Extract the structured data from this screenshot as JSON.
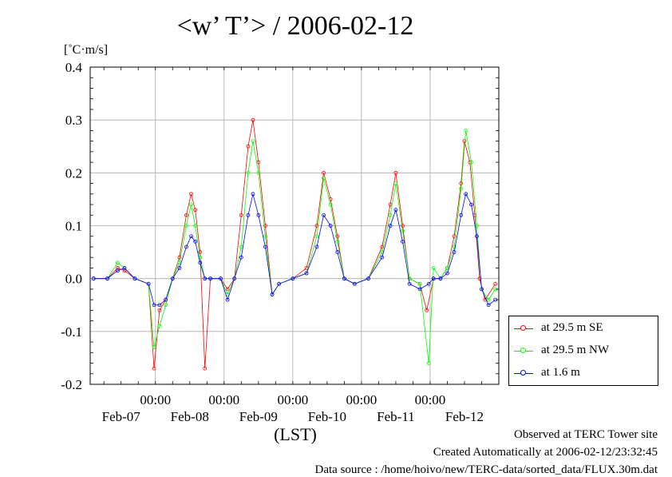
{
  "title": "<w’ T’> / 2006-02-12",
  "unit": "[˚C·m/s]",
  "xlabel": "(LST)",
  "footer": {
    "line1": "Observed at TERC Tower site",
    "line2": "Created Automatically at 2006-02-12/23:32:45",
    "line3": "Data source : /home/hoivo/new/TERC-data/sorted_data/FLUX.30m.dat"
  },
  "chart_data": {
    "type": "line",
    "ylim": [
      -0.2,
      0.4
    ],
    "yticks": [
      "-0.2",
      "-0.1",
      "0.0",
      "0.1",
      "0.2",
      "0.3",
      "0.4"
    ],
    "xlim": [
      -0.95,
      5.0
    ],
    "xticks_time": [
      "00:00",
      "00:00",
      "00:00",
      "00:00",
      "00:00"
    ],
    "xticks_date": [
      "Feb-07",
      "Feb-08",
      "Feb-09",
      "Feb-10",
      "Feb-11",
      "Feb-12"
    ],
    "grid": true,
    "legend_position": "right",
    "series": [
      {
        "name": "at 29.5 m SE",
        "color": "#ff0000",
        "values": [
          [
            -0.9,
            0.0
          ],
          [
            -0.7,
            0.0
          ],
          [
            -0.55,
            0.02
          ],
          [
            -0.45,
            0.015
          ],
          [
            -0.3,
            0.0
          ],
          [
            -0.1,
            -0.01
          ],
          [
            -0.02,
            -0.17
          ],
          [
            0.06,
            -0.06
          ],
          [
            0.15,
            -0.04
          ],
          [
            0.25,
            0.0
          ],
          [
            0.35,
            0.04
          ],
          [
            0.45,
            0.12
          ],
          [
            0.52,
            0.16
          ],
          [
            0.58,
            0.13
          ],
          [
            0.65,
            0.05
          ],
          [
            0.72,
            -0.17
          ],
          [
            0.8,
            0.0
          ],
          [
            0.95,
            0.0
          ],
          [
            1.05,
            -0.02
          ],
          [
            1.15,
            0.0
          ],
          [
            1.25,
            0.12
          ],
          [
            1.35,
            0.25
          ],
          [
            1.42,
            0.3
          ],
          [
            1.5,
            0.22
          ],
          [
            1.6,
            0.1
          ],
          [
            1.7,
            -0.03
          ],
          [
            1.8,
            -0.01
          ],
          [
            2.0,
            0.0
          ],
          [
            2.2,
            0.02
          ],
          [
            2.35,
            0.1
          ],
          [
            2.45,
            0.2
          ],
          [
            2.55,
            0.15
          ],
          [
            2.65,
            0.08
          ],
          [
            2.75,
            0.0
          ],
          [
            2.9,
            -0.01
          ],
          [
            3.1,
            0.0
          ],
          [
            3.3,
            0.06
          ],
          [
            3.42,
            0.14
          ],
          [
            3.5,
            0.2
          ],
          [
            3.6,
            0.1
          ],
          [
            3.7,
            0.0
          ],
          [
            3.85,
            -0.01
          ],
          [
            3.95,
            -0.06
          ],
          [
            4.05,
            0.0
          ],
          [
            4.15,
            0.0
          ],
          [
            4.25,
            0.02
          ],
          [
            4.35,
            0.08
          ],
          [
            4.45,
            0.18
          ],
          [
            4.5,
            0.26
          ],
          [
            4.58,
            0.22
          ],
          [
            4.65,
            0.12
          ],
          [
            4.72,
            0.0
          ],
          [
            4.8,
            -0.04
          ],
          [
            4.95,
            -0.01
          ]
        ]
      },
      {
        "name": "at 29.5 m NW",
        "color": "#00ff00",
        "values": [
          [
            -0.9,
            0.0
          ],
          [
            -0.7,
            0.0
          ],
          [
            -0.55,
            0.03
          ],
          [
            -0.45,
            0.02
          ],
          [
            -0.3,
            0.0
          ],
          [
            -0.1,
            -0.01
          ],
          [
            -0.02,
            -0.13
          ],
          [
            0.06,
            -0.09
          ],
          [
            0.15,
            -0.05
          ],
          [
            0.25,
            0.0
          ],
          [
            0.35,
            0.03
          ],
          [
            0.45,
            0.1
          ],
          [
            0.52,
            0.14
          ],
          [
            0.58,
            0.1
          ],
          [
            0.65,
            0.04
          ],
          [
            0.72,
            0.0
          ],
          [
            0.8,
            0.0
          ],
          [
            0.95,
            0.0
          ],
          [
            1.05,
            -0.03
          ],
          [
            1.15,
            0.0
          ],
          [
            1.25,
            0.06
          ],
          [
            1.35,
            0.2
          ],
          [
            1.42,
            0.26
          ],
          [
            1.5,
            0.2
          ],
          [
            1.6,
            0.08
          ],
          [
            1.7,
            -0.03
          ],
          [
            1.8,
            -0.01
          ],
          [
            2.0,
            0.0
          ],
          [
            2.2,
            0.01
          ],
          [
            2.35,
            0.08
          ],
          [
            2.45,
            0.19
          ],
          [
            2.55,
            0.14
          ],
          [
            2.65,
            0.07
          ],
          [
            2.75,
            0.0
          ],
          [
            2.9,
            -0.01
          ],
          [
            3.1,
            0.0
          ],
          [
            3.3,
            0.05
          ],
          [
            3.42,
            0.12
          ],
          [
            3.5,
            0.18
          ],
          [
            3.6,
            0.09
          ],
          [
            3.7,
            0.0
          ],
          [
            3.85,
            -0.01
          ],
          [
            3.98,
            -0.16
          ],
          [
            4.05,
            0.02
          ],
          [
            4.15,
            0.0
          ],
          [
            4.25,
            0.02
          ],
          [
            4.35,
            0.06
          ],
          [
            4.45,
            0.17
          ],
          [
            4.52,
            0.28
          ],
          [
            4.6,
            0.22
          ],
          [
            4.68,
            0.1
          ],
          [
            4.75,
            -0.02
          ],
          [
            4.85,
            -0.04
          ],
          [
            4.95,
            -0.02
          ]
        ]
      },
      {
        "name": "at 1.6 m",
        "color": "#0000ff",
        "values": [
          [
            -0.9,
            0.0
          ],
          [
            -0.7,
            0.0
          ],
          [
            -0.55,
            0.015
          ],
          [
            -0.45,
            0.02
          ],
          [
            -0.3,
            0.0
          ],
          [
            -0.1,
            -0.01
          ],
          [
            -0.02,
            -0.05
          ],
          [
            0.06,
            -0.05
          ],
          [
            0.15,
            -0.04
          ],
          [
            0.25,
            0.0
          ],
          [
            0.35,
            0.02
          ],
          [
            0.45,
            0.06
          ],
          [
            0.52,
            0.08
          ],
          [
            0.58,
            0.07
          ],
          [
            0.65,
            0.03
          ],
          [
            0.72,
            0.0
          ],
          [
            0.8,
            0.0
          ],
          [
            0.95,
            0.0
          ],
          [
            1.05,
            -0.04
          ],
          [
            1.15,
            0.0
          ],
          [
            1.25,
            0.04
          ],
          [
            1.35,
            0.12
          ],
          [
            1.42,
            0.16
          ],
          [
            1.5,
            0.12
          ],
          [
            1.6,
            0.06
          ],
          [
            1.7,
            -0.03
          ],
          [
            1.8,
            -0.01
          ],
          [
            2.0,
            0.0
          ],
          [
            2.2,
            0.01
          ],
          [
            2.35,
            0.06
          ],
          [
            2.45,
            0.12
          ],
          [
            2.55,
            0.1
          ],
          [
            2.65,
            0.05
          ],
          [
            2.75,
            0.0
          ],
          [
            2.9,
            -0.01
          ],
          [
            3.1,
            0.0
          ],
          [
            3.3,
            0.04
          ],
          [
            3.42,
            0.1
          ],
          [
            3.5,
            0.13
          ],
          [
            3.6,
            0.07
          ],
          [
            3.7,
            -0.01
          ],
          [
            3.85,
            -0.02
          ],
          [
            3.98,
            -0.01
          ],
          [
            4.05,
            0.0
          ],
          [
            4.15,
            0.0
          ],
          [
            4.25,
            0.01
          ],
          [
            4.35,
            0.05
          ],
          [
            4.45,
            0.12
          ],
          [
            4.52,
            0.16
          ],
          [
            4.6,
            0.14
          ],
          [
            4.68,
            0.08
          ],
          [
            4.75,
            -0.02
          ],
          [
            4.85,
            -0.05
          ],
          [
            4.95,
            -0.04
          ]
        ]
      }
    ]
  }
}
